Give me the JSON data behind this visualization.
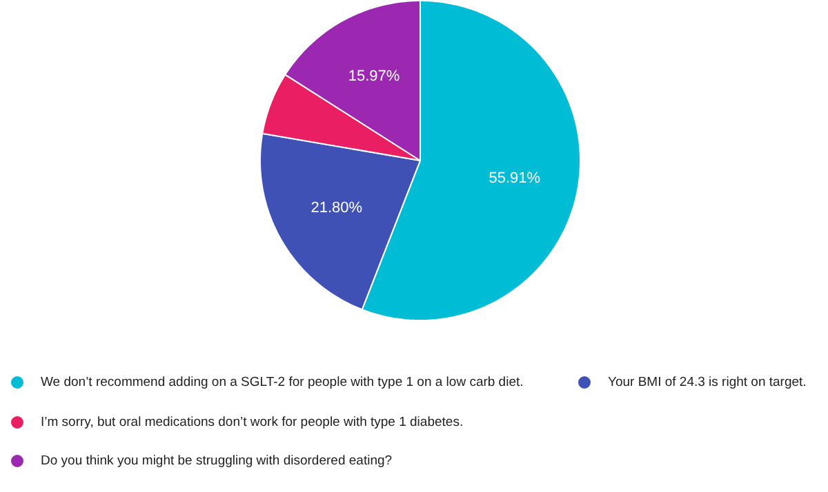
{
  "chart_data": {
    "type": "pie",
    "categories": [
      "We don’t recommend adding on a SGLT-2 for people with type 1 on a low carb diet.",
      "Your BMI of 24.3 is right on target.",
      "I’m sorry, but oral medications don’t work for people with type 1 diabetes.",
      "Do you think you might be struggling with disordered eating?"
    ],
    "values": [
      55.91,
      21.8,
      6.32,
      15.97
    ],
    "colors": [
      "#00bcd4",
      "#3f51b5",
      "#e91e63",
      "#9c27b0"
    ],
    "value_labels": [
      "55.91%",
      "21.80%",
      null,
      "15.97%"
    ],
    "legend": "bottom"
  }
}
